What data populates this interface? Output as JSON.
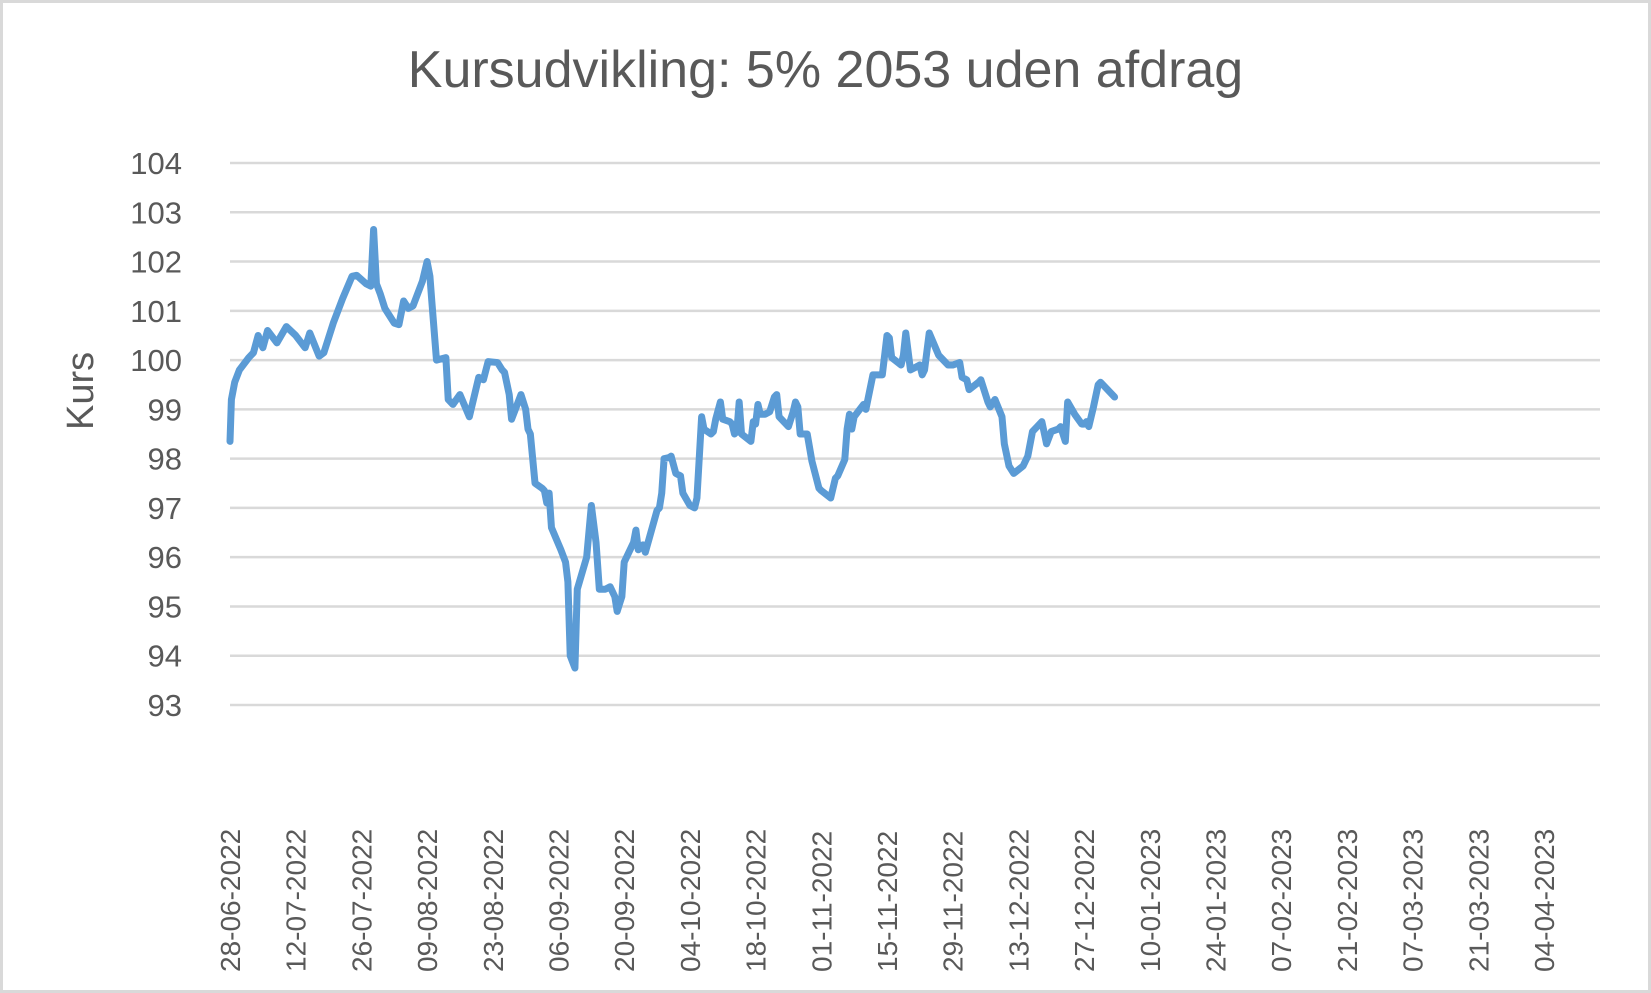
{
  "chart_data": {
    "type": "line",
    "title": "Kursudvikling: 5% 2053 uden afdrag",
    "xlabel": "",
    "ylabel": "Kurs",
    "ylim": [
      93,
      104
    ],
    "yticks": [
      93,
      94,
      95,
      96,
      97,
      98,
      99,
      100,
      101,
      102,
      103,
      104
    ],
    "grid": true,
    "legend": "none",
    "x_tick_labels": [
      "28-06-2022",
      "12-07-2022",
      "26-07-2022",
      "09-08-2022",
      "23-08-2022",
      "06-09-2022",
      "20-09-2022",
      "04-10-2022",
      "18-10-2022",
      "01-11-2022",
      "15-11-2022",
      "29-11-2022",
      "13-12-2022",
      "27-12-2022",
      "10-01-2023",
      "24-01-2023",
      "07-02-2023",
      "21-02-2023",
      "07-03-2023",
      "21-03-2023",
      "04-04-2023"
    ],
    "series": [
      {
        "name": "Kurs",
        "color": "#5B9BD5",
        "highlight_color": "#4472C4",
        "highlight_from_index": 143,
        "points": [
          [
            0,
            98.35
          ],
          [
            0.3,
            99.2
          ],
          [
            1,
            99.55
          ],
          [
            2,
            99.8
          ],
          [
            4,
            100.05
          ],
          [
            5,
            100.15
          ],
          [
            6,
            100.5
          ],
          [
            7,
            100.25
          ],
          [
            8,
            100.6
          ],
          [
            10,
            100.35
          ],
          [
            12,
            100.68
          ],
          [
            14,
            100.5
          ],
          [
            16,
            100.25
          ],
          [
            17,
            100.55
          ],
          [
            19,
            100.08
          ],
          [
            20,
            100.15
          ],
          [
            22,
            100.75
          ],
          [
            24,
            101.25
          ],
          [
            26,
            101.7
          ],
          [
            27,
            101.72
          ],
          [
            29,
            101.55
          ],
          [
            30,
            101.5
          ],
          [
            30.6,
            102.65
          ],
          [
            31.2,
            101.55
          ],
          [
            32,
            101.35
          ],
          [
            33,
            101.05
          ],
          [
            35,
            100.75
          ],
          [
            36,
            100.72
          ],
          [
            37,
            101.2
          ],
          [
            38,
            101.05
          ],
          [
            39,
            101.1
          ],
          [
            41,
            101.6
          ],
          [
            42,
            102.0
          ],
          [
            42.6,
            101.7
          ],
          [
            43,
            101.2
          ],
          [
            44,
            100.0
          ],
          [
            46,
            100.05
          ],
          [
            46.5,
            99.2
          ],
          [
            47.5,
            99.1
          ],
          [
            49,
            99.3
          ],
          [
            51,
            98.85
          ],
          [
            53,
            99.65
          ],
          [
            54,
            99.6
          ],
          [
            55,
            99.97
          ],
          [
            57,
            99.95
          ],
          [
            58,
            99.8
          ],
          [
            58.5,
            99.75
          ],
          [
            59.5,
            99.3
          ],
          [
            60,
            98.8
          ],
          [
            62,
            99.3
          ],
          [
            63,
            99.0
          ],
          [
            63.5,
            98.6
          ],
          [
            64,
            98.5
          ],
          [
            65,
            97.5
          ],
          [
            66.5,
            97.4
          ],
          [
            67,
            97.35
          ],
          [
            67.5,
            97.1
          ],
          [
            68,
            97.3
          ],
          [
            68.5,
            96.6
          ],
          [
            70.5,
            96.15
          ],
          [
            71.5,
            95.9
          ],
          [
            72,
            95.5
          ],
          [
            72.5,
            94.0
          ],
          [
            73.5,
            93.75
          ],
          [
            74,
            95.35
          ],
          [
            76,
            96.0
          ],
          [
            77,
            97.05
          ],
          [
            78,
            96.3
          ],
          [
            78.7,
            95.35
          ],
          [
            80,
            95.35
          ],
          [
            81,
            95.4
          ],
          [
            82,
            95.2
          ],
          [
            82.5,
            94.9
          ],
          [
            83,
            95.05
          ],
          [
            83.5,
            95.2
          ],
          [
            84,
            95.9
          ],
          [
            86,
            96.3
          ],
          [
            86.5,
            96.55
          ],
          [
            87,
            96.15
          ],
          [
            88,
            96.25
          ],
          [
            88.5,
            96.1
          ],
          [
            91,
            96.95
          ],
          [
            91.5,
            97.0
          ],
          [
            92,
            97.3
          ],
          [
            92.5,
            98.0
          ],
          [
            93.5,
            98.02
          ],
          [
            94,
            98.05
          ],
          [
            95,
            97.7
          ],
          [
            96,
            97.65
          ],
          [
            96.5,
            97.3
          ],
          [
            98,
            97.05
          ],
          [
            99,
            97.0
          ],
          [
            99.5,
            97.2
          ],
          [
            100.5,
            98.85
          ],
          [
            101,
            98.6
          ],
          [
            102.5,
            98.5
          ],
          [
            103,
            98.55
          ],
          [
            103.5,
            98.8
          ],
          [
            104.5,
            99.15
          ],
          [
            105,
            98.8
          ],
          [
            106.5,
            98.75
          ],
          [
            107,
            98.7
          ],
          [
            107.5,
            98.5
          ],
          [
            108,
            98.55
          ],
          [
            108.5,
            99.15
          ],
          [
            109,
            98.5
          ],
          [
            111,
            98.35
          ],
          [
            111.5,
            98.75
          ],
          [
            112,
            98.7
          ],
          [
            112.5,
            99.1
          ],
          [
            113,
            98.9
          ],
          [
            114,
            98.9
          ],
          [
            115,
            98.95
          ],
          [
            116,
            99.25
          ],
          [
            116.5,
            99.3
          ],
          [
            117,
            98.85
          ],
          [
            119,
            98.65
          ],
          [
            120,
            98.95
          ],
          [
            120.5,
            99.15
          ],
          [
            121,
            99.05
          ],
          [
            121.5,
            98.5
          ],
          [
            123,
            98.5
          ],
          [
            124,
            97.95
          ],
          [
            125.5,
            97.4
          ],
          [
            126,
            97.35
          ],
          [
            128,
            97.2
          ],
          [
            129,
            97.6
          ],
          [
            129.5,
            97.65
          ],
          [
            131,
            97.98
          ],
          [
            131.5,
            98.6
          ],
          [
            132,
            98.9
          ],
          [
            132.5,
            98.6
          ],
          [
            133,
            98.85
          ],
          [
            135,
            99.1
          ],
          [
            135.5,
            99.0
          ],
          [
            137,
            99.7
          ],
          [
            139,
            99.7
          ],
          [
            140,
            100.5
          ],
          [
            140.5,
            100.45
          ],
          [
            141,
            100.05
          ],
          [
            143,
            99.9
          ],
          [
            143.5,
            100.1
          ],
          [
            144,
            100.55
          ],
          [
            145,
            99.8
          ],
          [
            146,
            99.85
          ],
          [
            147,
            99.9
          ],
          [
            147.5,
            99.7
          ],
          [
            148,
            99.8
          ],
          [
            149,
            100.55
          ],
          [
            151,
            100.1
          ],
          [
            152,
            100.0
          ],
          [
            153,
            99.9
          ],
          [
            154,
            99.9
          ],
          [
            155.5,
            99.95
          ],
          [
            156,
            99.65
          ],
          [
            157,
            99.6
          ],
          [
            157.5,
            99.4
          ],
          [
            159.5,
            99.55
          ],
          [
            160,
            99.6
          ],
          [
            161.5,
            99.15
          ],
          [
            162,
            99.05
          ],
          [
            163,
            99.2
          ],
          [
            164.5,
            98.85
          ],
          [
            165,
            98.3
          ],
          [
            166,
            97.85
          ],
          [
            167,
            97.7
          ],
          [
            169,
            97.85
          ],
          [
            170,
            98.05
          ],
          [
            171,
            98.55
          ],
          [
            172,
            98.65
          ],
          [
            173,
            98.75
          ],
          [
            174,
            98.3
          ],
          [
            175,
            98.55
          ],
          [
            176.5,
            98.6
          ],
          [
            177,
            98.65
          ],
          [
            178,
            98.35
          ],
          [
            178.5,
            99.15
          ],
          [
            180,
            98.9
          ],
          [
            181.5,
            98.7
          ],
          [
            182,
            98.7
          ],
          [
            182.5,
            98.75
          ],
          [
            183,
            98.65
          ],
          [
            184,
            99.05
          ],
          [
            185,
            99.5
          ],
          [
            185.5,
            99.55
          ],
          [
            188,
            99.3
          ],
          [
            188.5,
            99.25
          ]
        ]
      }
    ]
  }
}
